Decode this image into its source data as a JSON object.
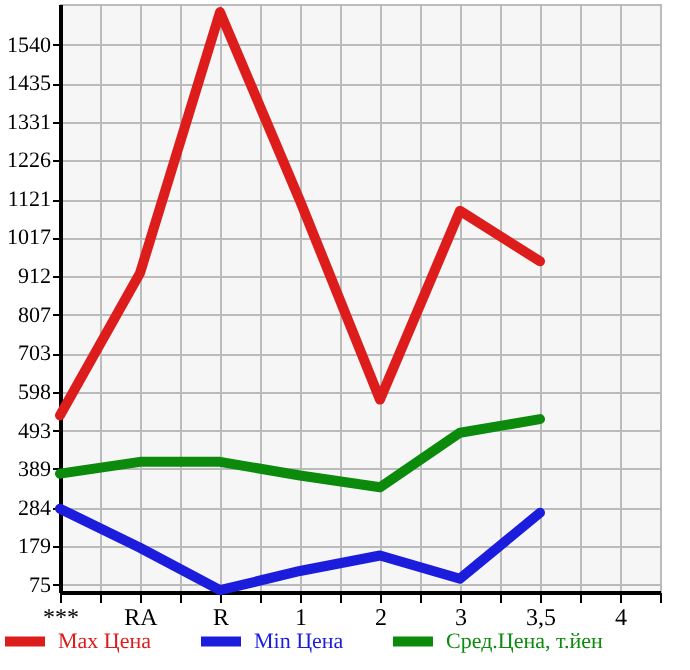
{
  "chart_data": {
    "type": "line",
    "categories": [
      "***",
      "RA",
      "R",
      "1",
      "2",
      "3",
      "3,5",
      "4"
    ],
    "series": [
      {
        "name": "Max Цена",
        "color": "#dd1c1c",
        "values": [
          534,
          920,
          1628,
          1116,
          577,
          1089,
          952,
          null
        ]
      },
      {
        "name": "Min Цена",
        "color": "#1c1cdd",
        "values": [
          281,
          175,
          60,
          112,
          154,
          91,
          270,
          null
        ]
      },
      {
        "name": "Сред.Цена, т.йен",
        "color": "#0c8a0c",
        "values": [
          376,
          408,
          408,
          371,
          339,
          487,
          524,
          null
        ]
      }
    ],
    "ylim": [
      55,
      1650
    ],
    "yticks": [
      75,
      179,
      284,
      389,
      493,
      598,
      703,
      807,
      912,
      1017,
      1121,
      1226,
      1331,
      1435,
      1540
    ],
    "grid": true,
    "legend": "bottom",
    "marker": "none",
    "line_style": "solid"
  }
}
